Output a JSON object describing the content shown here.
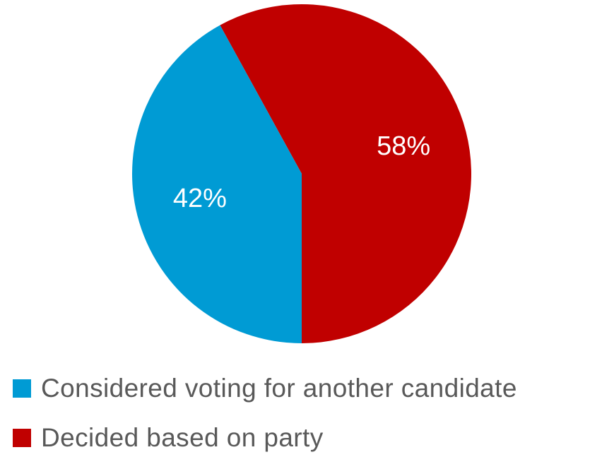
{
  "chart_data": {
    "type": "pie",
    "title": "",
    "categories": [
      "Considered voting for another candidate",
      "Decided based on party"
    ],
    "values": [
      42,
      58
    ],
    "data_labels": [
      "42%",
      "58%"
    ],
    "colors": [
      "#009bd4",
      "#c00000"
    ],
    "legend_position": "bottom-left"
  },
  "legend": {
    "items": [
      {
        "label": "Considered voting for another candidate",
        "color": "#009bd4"
      },
      {
        "label": "Decided based on party",
        "color": "#c00000"
      }
    ]
  }
}
